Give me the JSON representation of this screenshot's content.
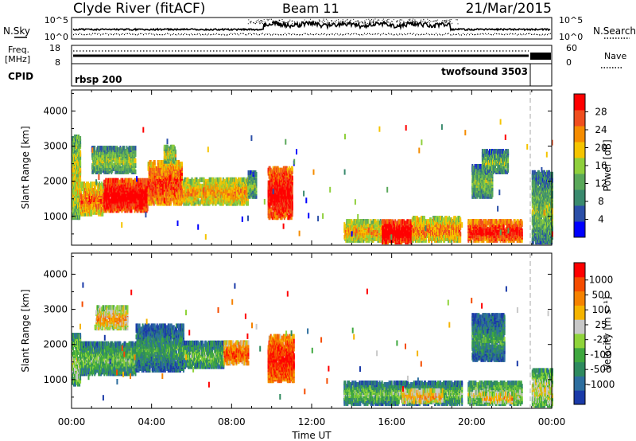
{
  "header": {
    "title": "Clyde River (fitACF)",
    "beam": "Beam 11",
    "date": "21/Mar/2015"
  },
  "nsky_panel": {
    "left_label": "N.Sky",
    "right_label": "N.Search",
    "left_ticks": [
      "10^5",
      "10^0"
    ],
    "right_ticks": [
      "10^5",
      "10^0"
    ]
  },
  "freq_panel": {
    "left_label_line1": "Freq.",
    "left_label_line2": "[MHz]",
    "right_label": "Nave",
    "left_ticks": [
      "18",
      "8"
    ],
    "right_ticks": [
      "60",
      "0"
    ]
  },
  "cpid_panel": {
    "label": "CPID",
    "segments": [
      {
        "name": "rbsp 200",
        "start_hour": 0.0,
        "end_hour": 22.95
      },
      {
        "name": "twofsound 3503",
        "start_hour": 22.95,
        "end_hour": 24.0
      }
    ]
  },
  "x_axis": {
    "label": "Time UT",
    "range_hours": [
      0,
      24
    ],
    "tick_labels": [
      "00:00",
      "04:00",
      "08:00",
      "12:00",
      "16:00",
      "20:00",
      "00:00"
    ]
  },
  "chart_data": [
    {
      "type": "heatmap",
      "panel": "power",
      "ylabel": "Slant Range [km]",
      "yticks": [
        "1000",
        "2000",
        "3000",
        "4000"
      ],
      "ylim": [
        180,
        4600
      ],
      "xlim": [
        0,
        24
      ],
      "colorbar_label": "Power [dB]",
      "colorbar_ticks": [
        "4",
        "8",
        "12",
        "16",
        "20",
        "24",
        "28"
      ],
      "colorbar_colors": [
        "#0000ff",
        "#2b4fa8",
        "#3a8a6e",
        "#5aa85a",
        "#8fcf3c",
        "#f5c400",
        "#f58c00",
        "#f04e1e",
        "#ff0000"
      ],
      "regions": [
        {
          "t_start": 0.0,
          "t_end": 0.4,
          "r_low": 900,
          "r_high": 3200,
          "level": 0.45
        },
        {
          "t_start": 0.4,
          "t_end": 1.6,
          "r_low": 1000,
          "r_high": 1900,
          "level": 0.62
        },
        {
          "t_start": 1.0,
          "t_end": 3.2,
          "r_low": 2200,
          "r_high": 2900,
          "level": 0.35
        },
        {
          "t_start": 1.6,
          "t_end": 3.8,
          "r_low": 1100,
          "r_high": 2000,
          "level": 0.88
        },
        {
          "t_start": 3.8,
          "t_end": 5.5,
          "r_low": 1300,
          "r_high": 2500,
          "level": 0.72
        },
        {
          "t_start": 4.6,
          "t_end": 5.2,
          "r_low": 2500,
          "r_high": 2950,
          "level": 0.4
        },
        {
          "t_start": 5.5,
          "t_end": 8.8,
          "r_low": 1300,
          "r_high": 2000,
          "level": 0.55
        },
        {
          "t_start": 8.8,
          "t_end": 9.2,
          "r_low": 1500,
          "r_high": 2200,
          "level": 0.3
        },
        {
          "t_start": 9.8,
          "t_end": 11.0,
          "r_low": 900,
          "r_high": 2300,
          "level": 0.85
        },
        {
          "t_start": 13.6,
          "t_end": 15.5,
          "r_low": 250,
          "r_high": 800,
          "level": 0.55
        },
        {
          "t_start": 15.5,
          "t_end": 17.0,
          "r_low": 200,
          "r_high": 800,
          "level": 0.9
        },
        {
          "t_start": 17.0,
          "t_end": 19.4,
          "r_low": 250,
          "r_high": 900,
          "level": 0.6
        },
        {
          "t_start": 19.8,
          "t_end": 22.5,
          "r_low": 250,
          "r_high": 800,
          "level": 0.8
        },
        {
          "t_start": 20.0,
          "t_end": 21.0,
          "r_low": 1500,
          "r_high": 2400,
          "level": 0.3
        },
        {
          "t_start": 20.5,
          "t_end": 21.8,
          "r_low": 2200,
          "r_high": 2800,
          "level": 0.3
        },
        {
          "t_start": 23.0,
          "t_end": 24.0,
          "r_low": 200,
          "r_high": 2200,
          "level": 0.3
        }
      ]
    },
    {
      "type": "heatmap",
      "panel": "velocity",
      "ylabel": "Slant Range [km]",
      "yticks": [
        "1000",
        "2000",
        "3000",
        "4000"
      ],
      "ylim": [
        180,
        4600
      ],
      "xlim": [
        0,
        24
      ],
      "colorbar_label": "Velocity [m s⁻¹]",
      "colorbar_ticks": [
        "1000",
        "500",
        "100",
        "25",
        "-25",
        "-100",
        "-500",
        "-1000"
      ],
      "colorbar_colors": [
        "#1a3aa8",
        "#2d6e9e",
        "#2e8a5f",
        "#3fa83f",
        "#8fd43a",
        "#c8c8c8",
        "#f5b400",
        "#f58200",
        "#f54c00",
        "#ff0000"
      ],
      "regions": [
        {
          "t_start": 0.0,
          "t_end": 0.4,
          "r_low": 800,
          "r_high": 2200,
          "level": 0.35
        },
        {
          "t_start": 0.4,
          "t_end": 3.2,
          "r_low": 1100,
          "r_high": 2000,
          "level": 0.25
        },
        {
          "t_start": 1.2,
          "t_end": 2.8,
          "r_low": 2400,
          "r_high": 3000,
          "level": 0.55
        },
        {
          "t_start": 3.2,
          "t_end": 5.6,
          "r_low": 1200,
          "r_high": 2500,
          "level": 0.15
        },
        {
          "t_start": 5.6,
          "t_end": 7.6,
          "r_low": 1300,
          "r_high": 2000,
          "level": 0.25
        },
        {
          "t_start": 7.6,
          "t_end": 8.8,
          "r_low": 1400,
          "r_high": 2000,
          "level": 0.7
        },
        {
          "t_start": 9.8,
          "t_end": 11.1,
          "r_low": 900,
          "r_high": 2200,
          "level": 0.8
        },
        {
          "t_start": 13.6,
          "t_end": 19.5,
          "r_low": 250,
          "r_high": 850,
          "level": 0.25
        },
        {
          "t_start": 16.5,
          "t_end": 18.5,
          "r_low": 300,
          "r_high": 650,
          "level": 0.55
        },
        {
          "t_start": 19.8,
          "t_end": 22.5,
          "r_low": 250,
          "r_high": 850,
          "level": 0.35
        },
        {
          "t_start": 20.5,
          "t_end": 22.0,
          "r_low": 300,
          "r_high": 550,
          "level": 0.55
        },
        {
          "t_start": 20.0,
          "t_end": 21.6,
          "r_low": 1500,
          "r_high": 2800,
          "level": 0.15
        },
        {
          "t_start": 23.0,
          "t_end": 24.0,
          "r_low": 200,
          "r_high": 1200,
          "level": 0.4
        }
      ]
    }
  ]
}
